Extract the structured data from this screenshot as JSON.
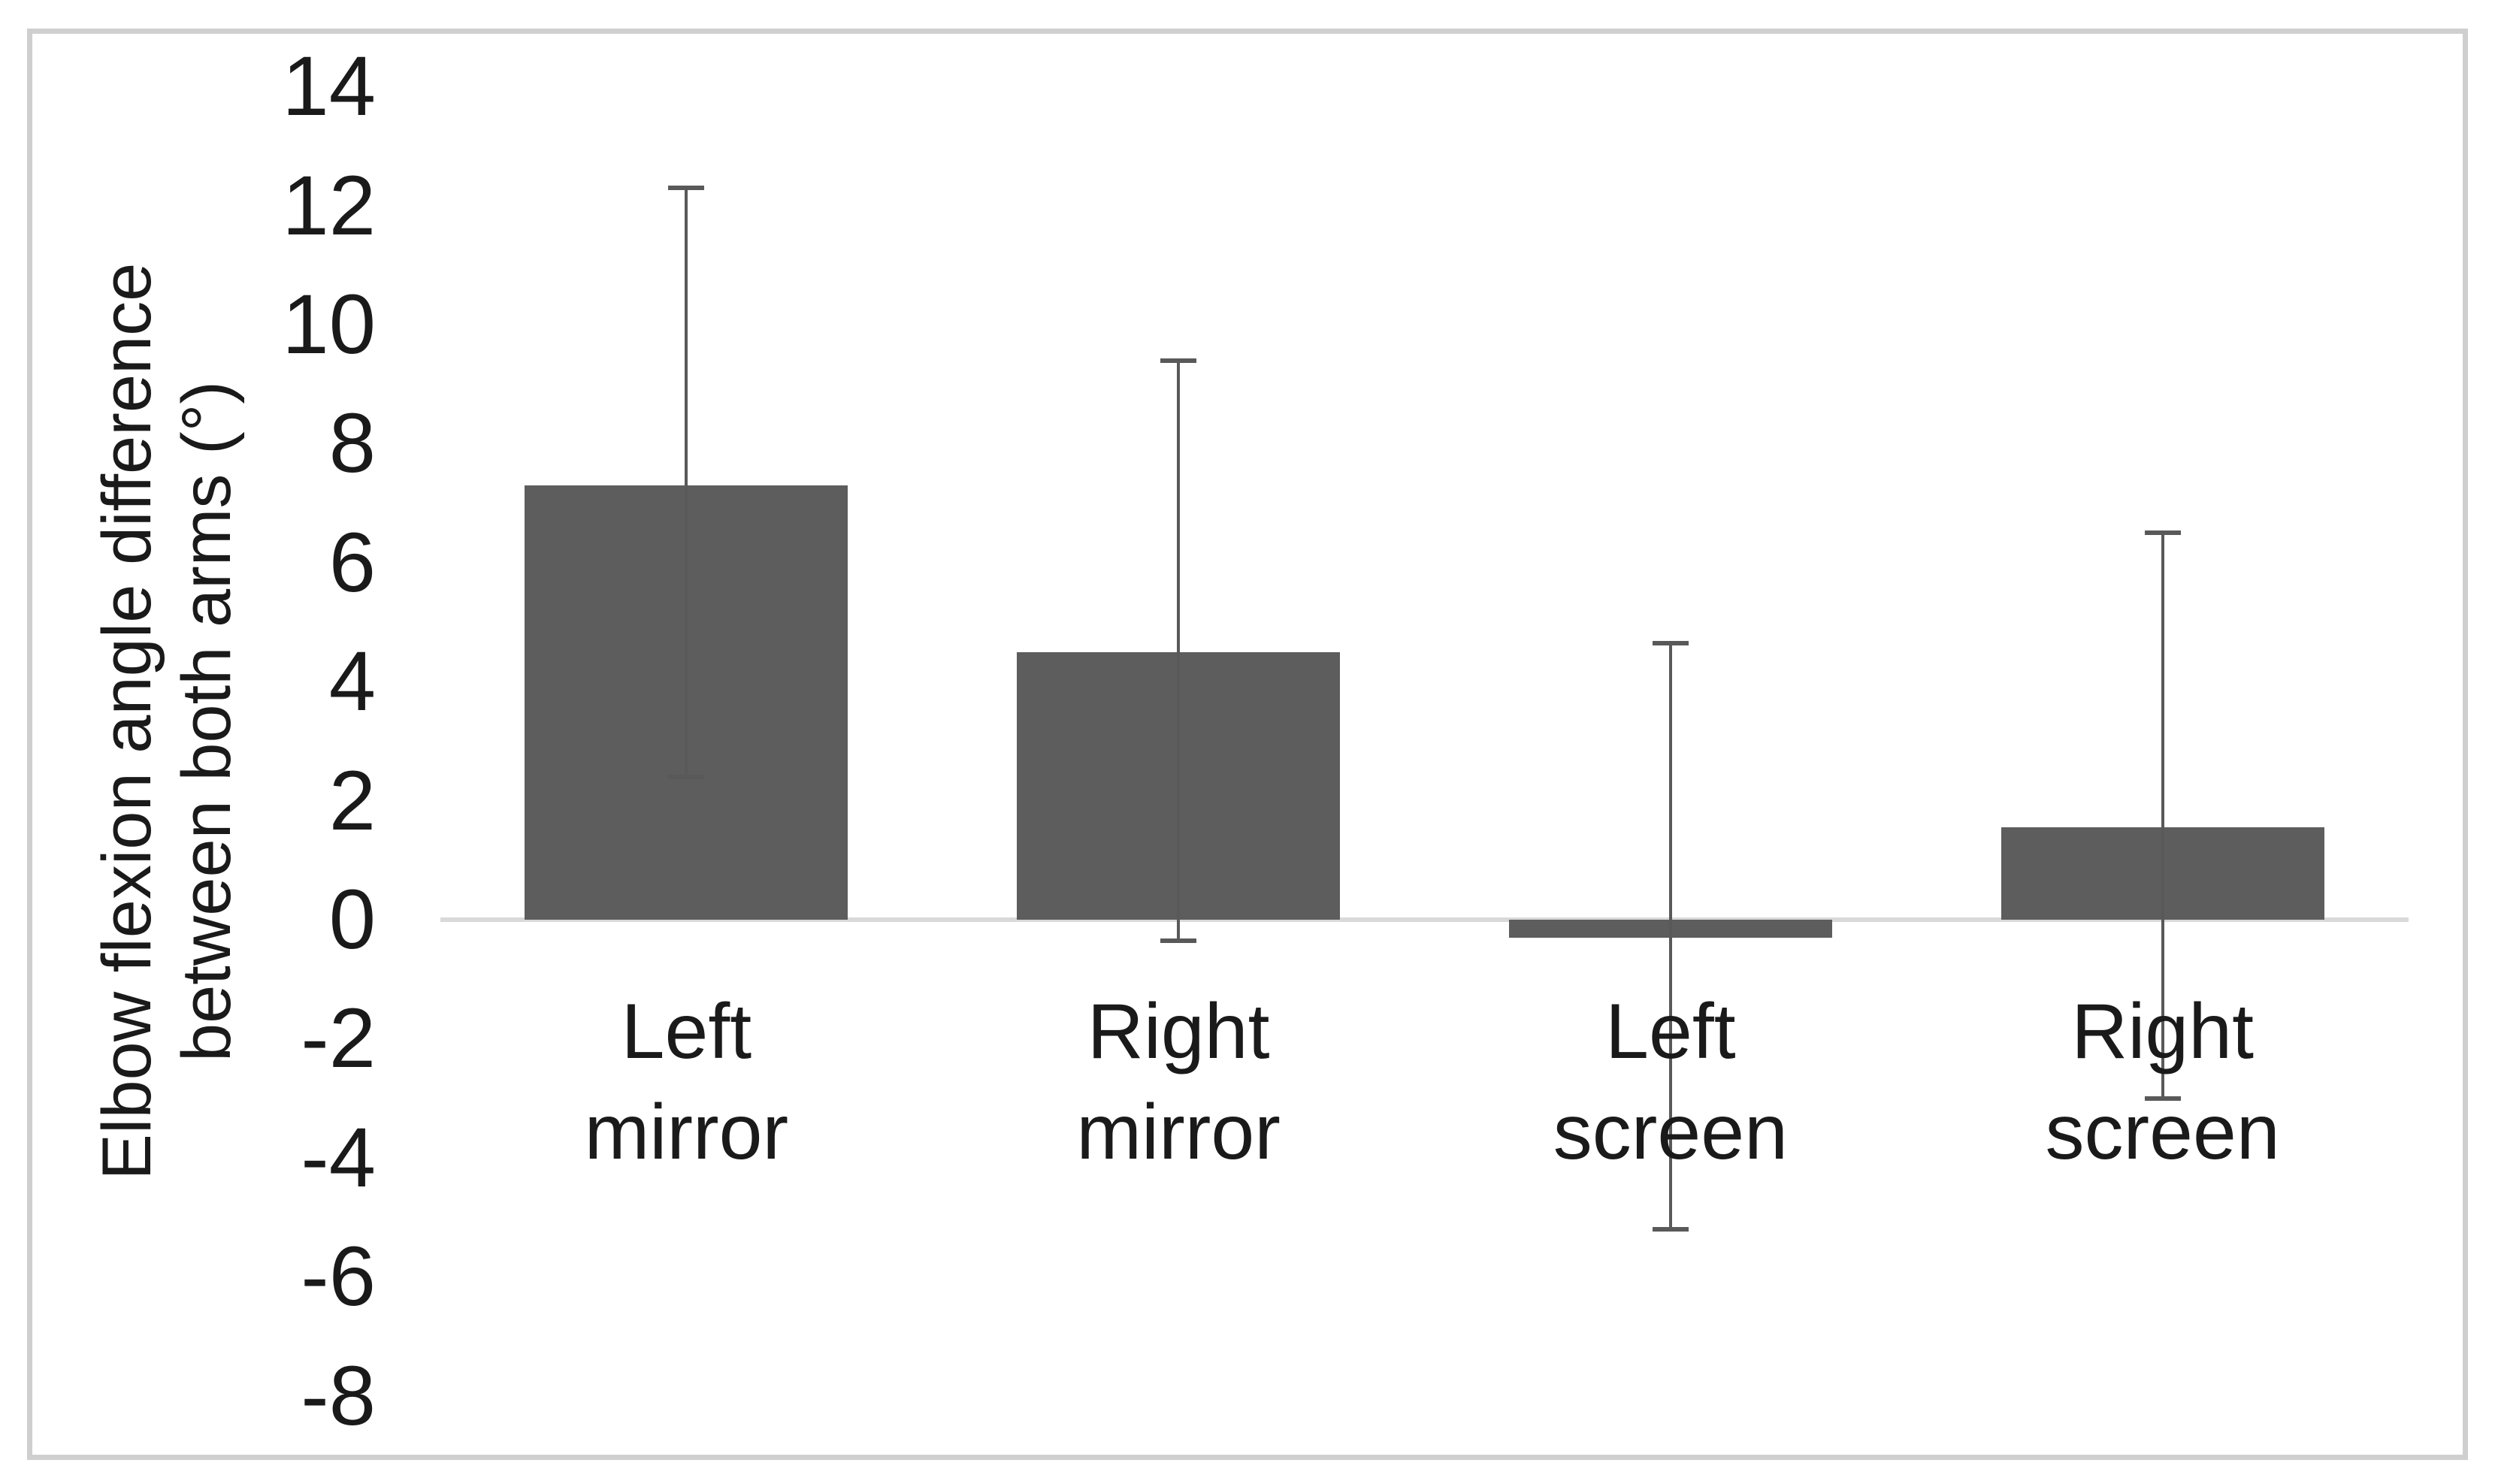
{
  "figure": {
    "kind": "journal-style bar chart figure",
    "background": "#ffffff"
  },
  "chart_data": {
    "type": "bar",
    "title": "",
    "xlabel": "",
    "ylabel": "Elbow flexion angle difference between both arms (°)",
    "ylabel_lines": [
      "Elbow flexion angle difference",
      "between both arms (°)"
    ],
    "categories": [
      "Left mirror",
      "Right mirror",
      "Left screen",
      "Right screen"
    ],
    "category_lines": [
      [
        "Left",
        "mirror"
      ],
      [
        "Right",
        "mirror"
      ],
      [
        "Left",
        "screen"
      ],
      [
        "Right",
        "screen"
      ]
    ],
    "values": [
      7.3,
      4.5,
      -0.3,
      1.55
    ],
    "error_bars": {
      "upper_ends": [
        12.3,
        9.4,
        4.65,
        6.5
      ],
      "lower_ends": [
        2.4,
        -0.35,
        -5.2,
        -3.0
      ]
    },
    "yticks": [
      14,
      12,
      10,
      8,
      6,
      4,
      2,
      0,
      -2,
      -4,
      -6,
      -8
    ],
    "ylim": [
      -8,
      14
    ],
    "grid": false,
    "legend": null,
    "bar_color": "#5d5d5d",
    "error_bar_color": "#595959",
    "axis_line_color": "#d9d9d9",
    "frame_border_color": "#cfcfcf",
    "text_color": "#1a1a1a"
  }
}
